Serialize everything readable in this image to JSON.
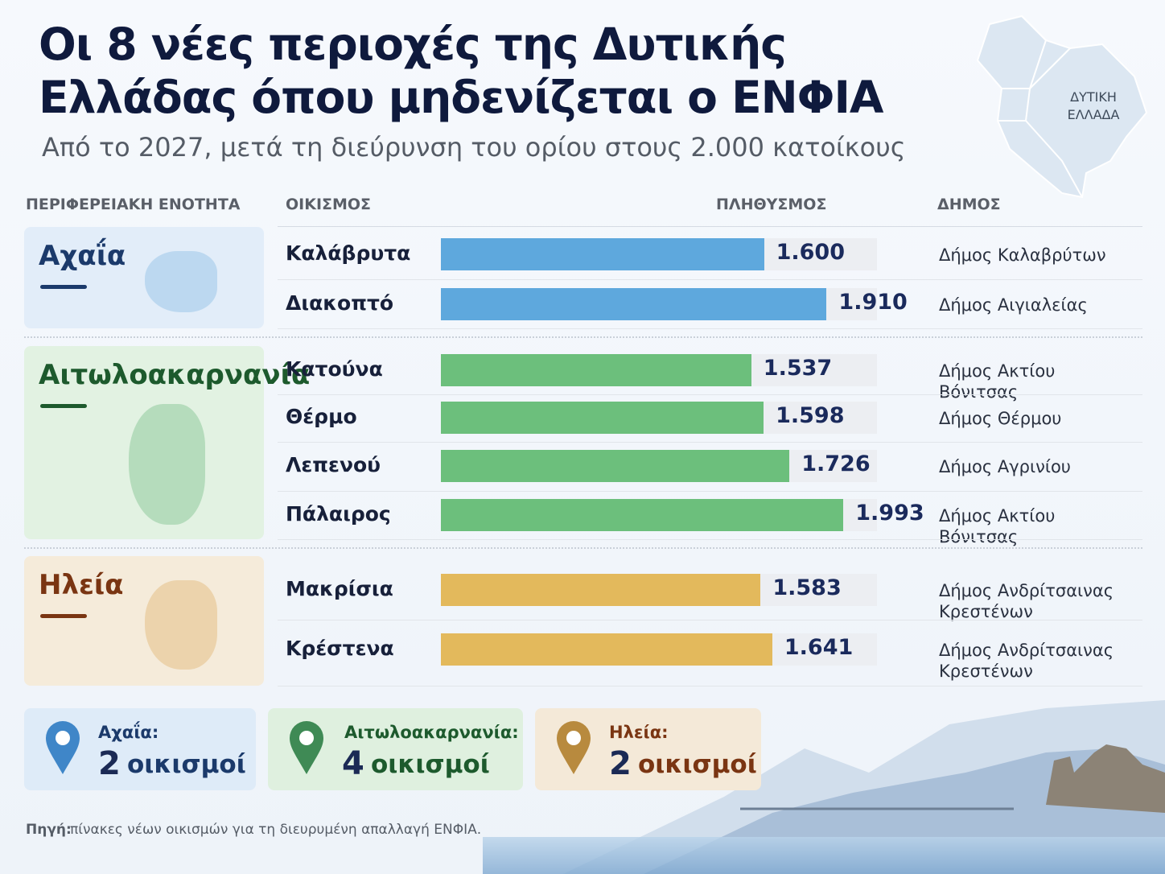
{
  "chart_data": {
    "type": "bar",
    "orientation": "horizontal",
    "title": "Οι 8 νέες περιοχές της Δυτικής Ελλάδας όπου μηδενίζεται ο ΕΝΦΙΑ",
    "subtitle": "Από το 2027, μετά τη διεύρυνση του ορίου στους 2.000 κατοίκους",
    "map_label": "ΔΥΤΙΚΗ ΕΛΛΑΔΑ",
    "column_headers": [
      "ΠΕΡΙΦΕΡΕΙΑΚΗ ΕΝΟΤΗΤΑ",
      "ΟΙΚΙΣΜΟΣ",
      "ΠΛΗΘΥΣΜΟΣ",
      "ΔΗΜΟΣ"
    ],
    "groups": [
      {
        "name": "Αχαΐα",
        "color": "#5ea8dd",
        "categories": [
          "Καλάβρυτα",
          "Διακοπτό"
        ],
        "values": [
          1600,
          1910
        ],
        "value_labels": [
          "1.600",
          "1.910"
        ],
        "municipalities": [
          "Δήμος Καλαβρύτων",
          "Δήμος Αιγιαλείας"
        ]
      },
      {
        "name": "Αιτωλοακαρνανία",
        "color": "#6cbf7c",
        "categories": [
          "Κατούνα",
          "Θέρμο",
          "Λεπενού",
          "Πάλαιρος"
        ],
        "values": [
          1537,
          1598,
          1726,
          1993
        ],
        "value_labels": [
          "1.537",
          "1.598",
          "1.726",
          "1.993"
        ],
        "municipalities": [
          "Δήμος Ακτίου Βόνιτσας",
          "Δήμος Θέρμου",
          "Δήμος Αγρινίου",
          "Δήμος Ακτίου Βόνιτσας"
        ]
      },
      {
        "name": "Ηλεία",
        "color": "#e3b95c",
        "categories": [
          "Μακρίσια",
          "Κρέστενα"
        ],
        "values": [
          1583,
          1641
        ],
        "value_labels": [
          "1.583",
          "1.641"
        ],
        "municipalities": [
          "Δήμος Ανδρίτσαινας Κρεστένων",
          "Δήμος Ανδρίτσαινας Κρεστένων"
        ]
      }
    ],
    "summary": [
      {
        "label": "Αχαΐα:",
        "count": 2,
        "unit": "οικισμοί"
      },
      {
        "label": "Αιτωλοακαρνανία:",
        "count": 4,
        "unit": "οικισμοί"
      },
      {
        "label": "Ηλεία:",
        "count": 2,
        "unit": "οικισμοί"
      }
    ],
    "source_label": "Πηγή:",
    "source": "πίνακες νέων οικισμών για τη διευρυμένη απαλλαγή ΕΝΦΙΑ."
  }
}
